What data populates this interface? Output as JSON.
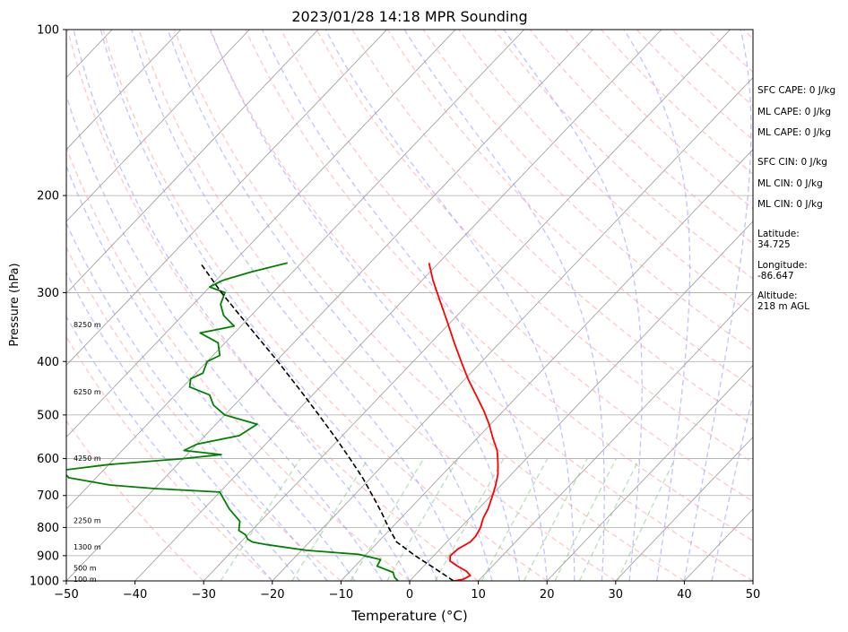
{
  "colors": {
    "temperature": "#ff0000",
    "dewpoint": "#008000",
    "parcel": "#000000",
    "dry_adiabat": "#ff9999",
    "moist_adiabat": "#9999ff",
    "mixing_ratio": "#88cc88",
    "isotherm": "#999999",
    "isobar": "#aaaaaa"
  },
  "chart_data": {
    "type": "line",
    "subtype": "skew-t log-p sounding",
    "title": "2023/01/28 14:18 MPR Sounding",
    "xlabel": "Temperature (°C)",
    "ylabel": "Pressure (hPa)",
    "xlim": [
      -50,
      50
    ],
    "ylim": [
      1000,
      100
    ],
    "y_scale": "log",
    "grid": true,
    "x_ticks": [
      -50,
      -40,
      -30,
      -20,
      -10,
      0,
      10,
      20,
      30,
      40,
      50
    ],
    "x_tick_labels": [
      "−50",
      "−40",
      "−30",
      "−20",
      "−10",
      "0",
      "10",
      "20",
      "30",
      "40",
      "50"
    ],
    "y_ticks": [
      1000,
      900,
      800,
      700,
      600,
      500,
      400,
      300,
      200,
      100
    ],
    "y_tick_labels": [
      "1000",
      "900",
      "800",
      "700",
      "600",
      "500",
      "400",
      "300",
      "200",
      "100"
    ],
    "series": [
      {
        "role": "temperature",
        "pressure": [
          1000,
          993,
          978,
          960,
          940,
          920,
          900,
          875,
          850,
          830,
          800,
          770,
          740,
          700,
          670,
          640,
          610,
          580,
          550,
          520,
          490,
          460,
          430,
          400,
          370,
          340,
          310,
          285,
          265
        ],
        "temperature": [
          6.5,
          7.6,
          8.1,
          6.9,
          4.9,
          3.1,
          2.4,
          2.6,
          3.4,
          3.4,
          2.9,
          2.0,
          1.4,
          0.2,
          -0.8,
          -2.0,
          -3.6,
          -5.4,
          -7.8,
          -10.2,
          -13.0,
          -16.2,
          -19.6,
          -23.0,
          -26.6,
          -30.4,
          -34.6,
          -38.4,
          -41.4
        ]
      },
      {
        "role": "dewpoint",
        "pressure": [
          1000,
          985,
          965,
          940,
          915,
          895,
          880,
          860,
          850,
          840,
          825,
          810,
          780,
          740,
          690,
          680,
          670,
          650,
          630,
          615,
          600,
          590,
          580,
          565,
          545,
          520,
          500,
          480,
          460,
          445,
          430,
          420,
          400,
          390,
          370,
          355,
          345,
          330,
          315,
          300,
          293,
          285,
          275,
          265
        ],
        "dewpoint": [
          -1.7,
          -2.7,
          -3.6,
          -6.8,
          -7.2,
          -11.1,
          -19.3,
          -25.7,
          -28.3,
          -29.4,
          -30.3,
          -31.9,
          -33.0,
          -36.3,
          -40.0,
          -50.0,
          -57.0,
          -64.0,
          -66.0,
          -60.0,
          -50.0,
          -45.0,
          -51.0,
          -50.0,
          -45.0,
          -44.0,
          -50.0,
          -53.0,
          -55.0,
          -59.0,
          -60.0,
          -59.0,
          -60.0,
          -59.0,
          -61.0,
          -65.0,
          -61.0,
          -64.0,
          -66.0,
          -67.0,
          -70.0,
          -69.0,
          -66.0,
          -62.0
        ]
      },
      {
        "role": "parcel",
        "pressure": [
          1000,
          950,
          900,
          850,
          800,
          750,
          700,
          650,
          600,
          550,
          500,
          450,
          400,
          350,
          300,
          265
        ],
        "temperature": [
          6.4,
          2.0,
          -2.7,
          -7.3,
          -10.5,
          -13.7,
          -17.3,
          -21.2,
          -25.7,
          -30.7,
          -36.3,
          -42.6,
          -49.7,
          -58.0,
          -67.5,
          -74.7
        ]
      }
    ],
    "height_labels": [
      "100 m",
      "500 m",
      "1300 m",
      "2250 m",
      "4250 m",
      "6250 m",
      "8250 m"
    ],
    "height_label_pressure": [
      992,
      947,
      868,
      777,
      599,
      454,
      343
    ],
    "indices": {
      "sfc_cape": "SFC CAPE: 0 J/kg",
      "ml_cape_1": "ML CAPE: 0 J/kg",
      "ml_cape_2": "ML CAPE: 0 J/kg",
      "sfc_cin": "SFC CIN: 0 J/kg",
      "ml_cin_1": "ML CIN: 0 J/kg",
      "ml_cin_2": "ML CIN: 0 J/kg",
      "latitude_label": "Latitude:",
      "latitude_value": "34.725",
      "longitude_label": "Longitude:",
      "longitude_value": "-86.647",
      "altitude_label": "Altitude:",
      "altitude_value": "218 m AGL"
    }
  }
}
